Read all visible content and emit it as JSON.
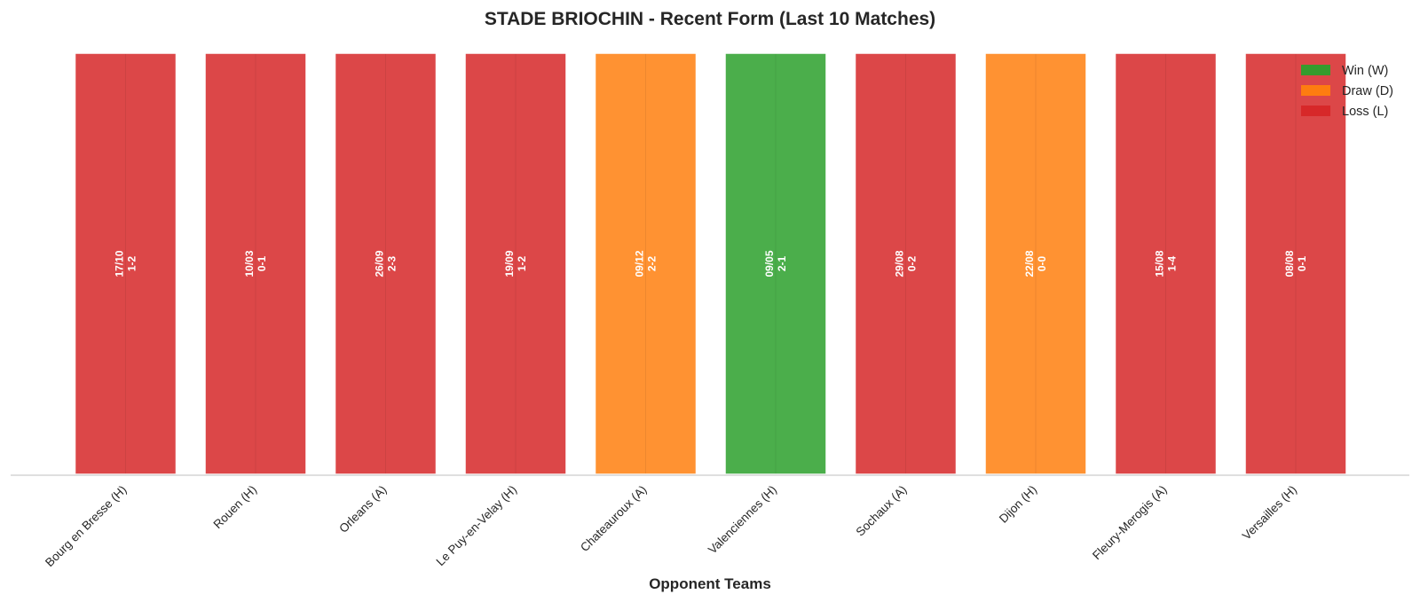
{
  "chart_data": {
    "type": "bar",
    "title": "STADE BRIOCHIN - Recent Form (Last 10 Matches)",
    "xlabel": "Opponent Teams",
    "ylabel": "",
    "ylim": [
      0,
      1
    ],
    "grid": false,
    "legend": {
      "placement": "top-right",
      "entries": [
        {
          "code": "W",
          "label": "Win (W)",
          "color": "#2ca02c"
        },
        {
          "code": "D",
          "label": "Draw (D)",
          "color": "#ff7f0e"
        },
        {
          "code": "L",
          "label": "Loss (L)",
          "color": "#d62728"
        }
      ]
    },
    "matches": [
      {
        "opponent": "Bourg en Bresse (H)",
        "date": "17/10",
        "score": "1-2",
        "result": "L",
        "value": 1
      },
      {
        "opponent": "Rouen (H)",
        "date": "10/03",
        "score": "0-1",
        "result": "L",
        "value": 1
      },
      {
        "opponent": "Orleans (A)",
        "date": "26/09",
        "score": "2-3",
        "result": "L",
        "value": 1
      },
      {
        "opponent": "Le Puy-en-Velay (H)",
        "date": "19/09",
        "score": "1-2",
        "result": "L",
        "value": 1
      },
      {
        "opponent": "Chateauroux (A)",
        "date": "09/12",
        "score": "2-2",
        "result": "D",
        "value": 1
      },
      {
        "opponent": "Valenciennes (H)",
        "date": "09/05",
        "score": "2-1",
        "result": "W",
        "value": 1
      },
      {
        "opponent": "Sochaux (A)",
        "date": "29/08",
        "score": "0-2",
        "result": "L",
        "value": 1
      },
      {
        "opponent": "Dijon (H)",
        "date": "22/08",
        "score": "0-0",
        "result": "D",
        "value": 1
      },
      {
        "opponent": "Fleury-Merogis (A)",
        "date": "15/08",
        "score": "1-4",
        "result": "L",
        "value": 1
      },
      {
        "opponent": "Versailles (H)",
        "date": "08/08",
        "score": "0-1",
        "result": "L",
        "value": 1
      }
    ]
  }
}
